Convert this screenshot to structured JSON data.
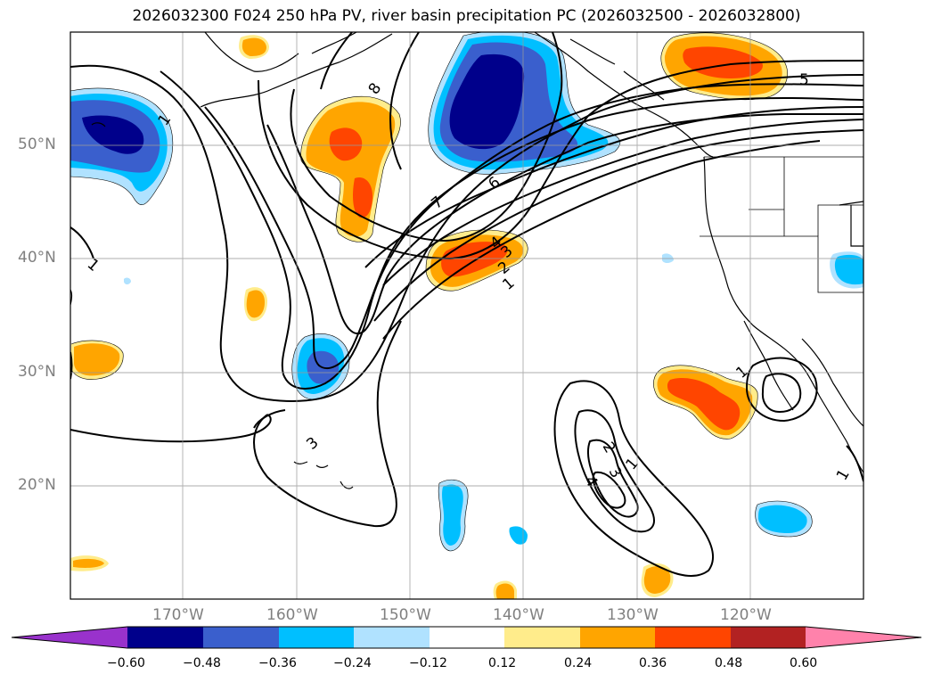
{
  "title": "2026032300 F024 250 hPa PV, river basin precipitation PC (2026032500 - 2026032800)",
  "lon_labels": [
    "170°W",
    "160°W",
    "150°W",
    "140°W",
    "130°W",
    "120°W"
  ],
  "lat_labels": [
    "50°N",
    "40°N",
    "30°N",
    "20°N"
  ],
  "pv_contour_labels": [
    "1",
    "8",
    "7",
    "6",
    "5",
    "4",
    "3",
    "2",
    "1",
    "1",
    "3",
    "1",
    "2",
    "3",
    "4",
    "1",
    "1"
  ],
  "colorbar": {
    "ticks": [
      "−0.60",
      "−0.48",
      "−0.36",
      "−0.24",
      "−0.12",
      "0.12",
      "0.24",
      "0.36",
      "0.48",
      "0.60"
    ],
    "colors": [
      "#9932cc",
      "#00008b",
      "#3a5fcd",
      "#00bfff",
      "#b0e2ff",
      "#ffffff",
      "#ffec8b",
      "#ffa500",
      "#ff4500",
      "#b22222",
      "#ff82ab"
    ]
  }
}
